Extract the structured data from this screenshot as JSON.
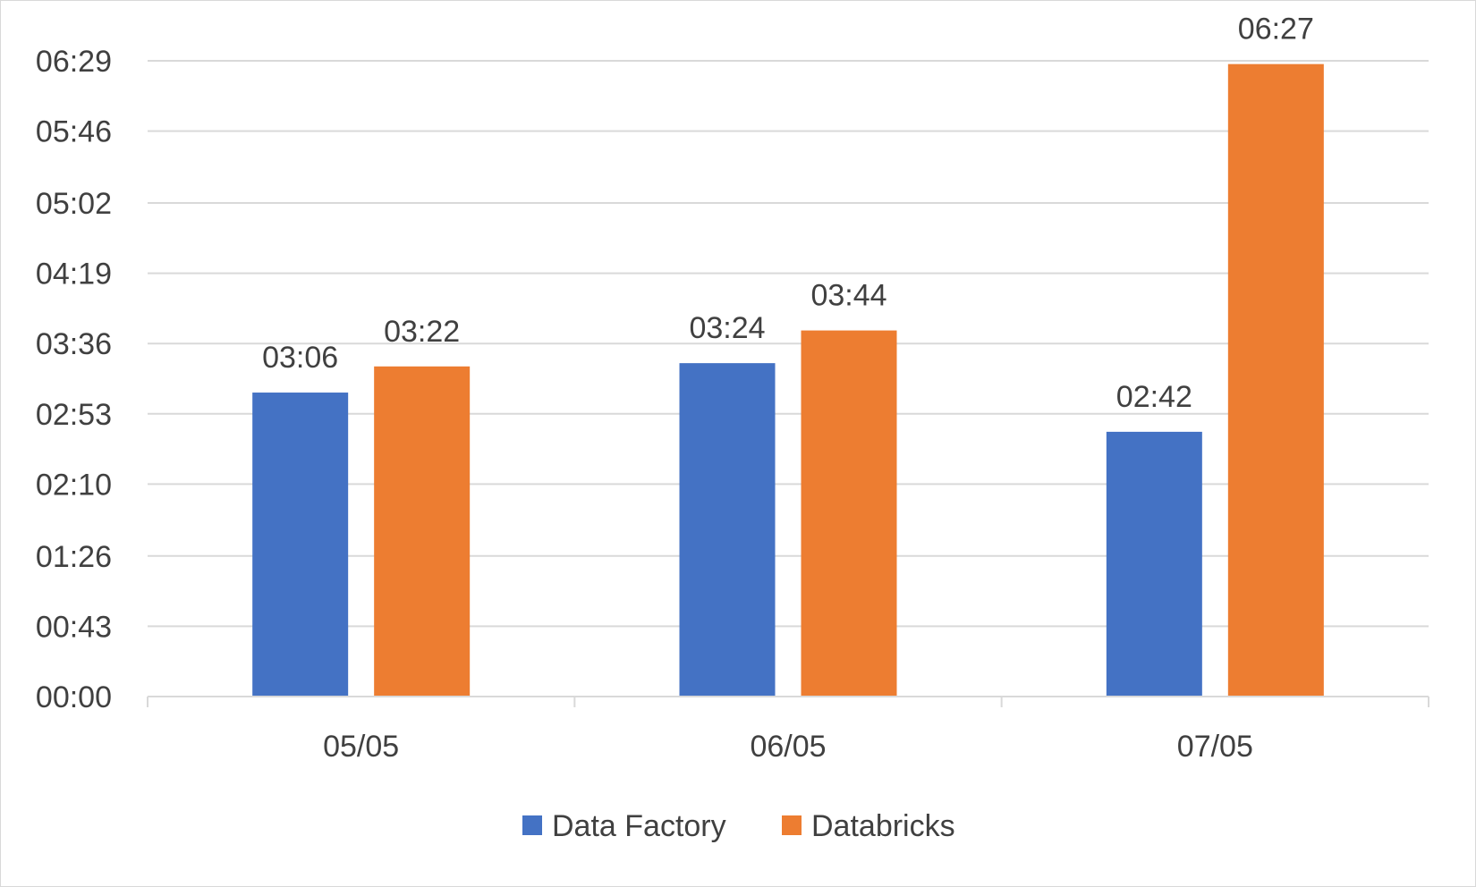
{
  "chart_data": {
    "type": "bar",
    "title": "",
    "xlabel": "",
    "ylabel": "",
    "categories": [
      "05/05",
      "06/05",
      "07/05"
    ],
    "series": [
      {
        "name": "Data Factory",
        "color": "#4472c4",
        "values": [
          186,
          204,
          162
        ],
        "labels": [
          "03:06",
          "03:24",
          "02:42"
        ]
      },
      {
        "name": "Databricks",
        "color": "#ed7d31",
        "values": [
          202,
          224,
          387
        ],
        "labels": [
          "03:22",
          "03:44",
          "06:27"
        ]
      }
    ],
    "ylim": [
      0,
      389
    ],
    "yticks": [
      0,
      43,
      86,
      130,
      173,
      216,
      259,
      302,
      346,
      389
    ],
    "ytick_labels": [
      "00:00",
      "00:43",
      "01:26",
      "02:10",
      "02:53",
      "03:36",
      "04:19",
      "05:02",
      "05:46",
      "06:29"
    ],
    "grid": true,
    "legend": "bottom"
  }
}
